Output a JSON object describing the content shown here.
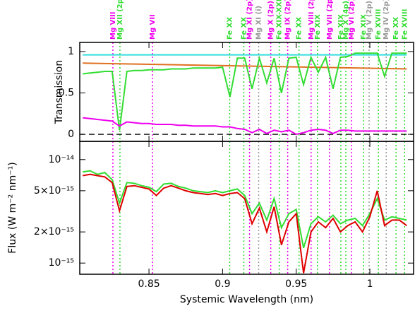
{
  "chart_data": [
    {
      "type": "line",
      "ylabel": "Transmission",
      "xlim": [
        0.803,
        1.0297
      ],
      "xticks": [
        0.85,
        0.9,
        0.95,
        1
      ],
      "ylim": [
        -0.085,
        1.11
      ],
      "yticks": [
        0,
        0.5,
        1
      ],
      "hline": 0,
      "x": [
        0.805,
        0.81,
        0.815,
        0.82,
        0.825,
        0.83,
        0.835,
        0.84,
        0.845,
        0.85,
        0.855,
        0.86,
        0.865,
        0.87,
        0.875,
        0.88,
        0.885,
        0.89,
        0.895,
        0.9,
        0.905,
        0.91,
        0.915,
        0.92,
        0.925,
        0.93,
        0.935,
        0.94,
        0.945,
        0.95,
        0.955,
        0.96,
        0.965,
        0.97,
        0.975,
        0.98,
        0.985,
        0.99,
        0.995,
        1,
        1.005,
        1.01,
        1.015,
        1.02,
        1.025
      ],
      "series": [
        {
          "color": "#33dddd",
          "x": [
            0.805,
            1.025
          ],
          "values": [
            0.96,
            0.96
          ]
        },
        {
          "color": "#e07020",
          "x": [
            0.805,
            1.025
          ],
          "values": [
            0.86,
            0.79
          ]
        },
        {
          "color": "#33dd33",
          "values": [
            0.73,
            0.74,
            0.75,
            0.76,
            0.76,
            0.05,
            0.76,
            0.77,
            0.77,
            0.78,
            0.78,
            0.78,
            0.79,
            0.79,
            0.79,
            0.8,
            0.8,
            0.8,
            0.8,
            0.81,
            0.45,
            0.92,
            0.92,
            0.55,
            0.92,
            0.62,
            0.92,
            0.5,
            0.92,
            0.93,
            0.6,
            0.93,
            0.75,
            0.93,
            0.55,
            0.93,
            0.94,
            0.98,
            0.98,
            0.98,
            0.98,
            0.7,
            0.98,
            0.98,
            0.98
          ]
        },
        {
          "color": "#ee00ee",
          "values": [
            0.2,
            0.19,
            0.18,
            0.17,
            0.16,
            0.1,
            0.15,
            0.14,
            0.13,
            0.13,
            0.12,
            0.12,
            0.12,
            0.11,
            0.11,
            0.1,
            0.1,
            0.1,
            0.1,
            0.09,
            0.09,
            0.07,
            0.06,
            0.02,
            0.06,
            0.01,
            0.05,
            0.03,
            0.05,
            0.0,
            0.02,
            0.05,
            0.06,
            0.05,
            0.01,
            0.05,
            0.05,
            0.04,
            0.04,
            0.04,
            0.04,
            0.04,
            0.04,
            0.04,
            0.04
          ]
        }
      ],
      "annotations": [
        {
          "text": "Mg VIII",
          "x": 0.8255,
          "color": "#ee00ee"
        },
        {
          "text": "Mg XII (2p)",
          "x": 0.8303,
          "color": "#33dd33"
        },
        {
          "text": "Mg VII",
          "x": 0.8524,
          "color": "#ee00ee"
        },
        {
          "text": "Fe XX",
          "x": 0.9048,
          "color": "#33dd33"
        },
        {
          "text": "Fe XX",
          "x": 0.9144,
          "color": "#33dd33"
        },
        {
          "text": "Mg XI (2p)",
          "x": 0.9183,
          "color": "#ee00ee"
        },
        {
          "text": "Mg XI (i)",
          "x": 0.9245,
          "color": "#999999"
        },
        {
          "text": "Mg X (2p)",
          "x": 0.9327,
          "color": "#ee00ee"
        },
        {
          "text": "Fe XIX-XXI",
          "x": 0.9385,
          "color": "#33dd33"
        },
        {
          "text": "Mg IX (2p)",
          "x": 0.9442,
          "color": "#ee00ee"
        },
        {
          "text": "Fe XX",
          "x": 0.9519,
          "color": "#33dd33"
        },
        {
          "text": "Mg VIII (2p)",
          "x": 0.9601,
          "color": "#ee00ee"
        },
        {
          "text": "Fe XIX",
          "x": 0.9644,
          "color": "#33dd33"
        },
        {
          "text": "Mg VII (2p)",
          "x": 0.9726,
          "color": "#ee00ee"
        },
        {
          "text": "Fe XIX",
          "x": 0.9803,
          "color": "#33dd33"
        },
        {
          "text": "Mg X (4p)",
          "x": 0.9837,
          "color": "#33dd33"
        },
        {
          "text": "Mg VI (2p)",
          "x": 0.9875,
          "color": "#ee00ee"
        },
        {
          "text": "Fe XIX",
          "x": 0.9957,
          "color": "#33dd33"
        },
        {
          "text": "Mg V (2p)",
          "x": 0.9995,
          "color": "#999999"
        },
        {
          "text": "Fe XVIII",
          "x": 1.0058,
          "color": "#33dd33"
        },
        {
          "text": "Mg IV (2p)",
          "x": 1.0111,
          "color": "#999999"
        },
        {
          "text": "Fe XX",
          "x": 1.0178,
          "color": "#33dd33"
        },
        {
          "text": "Fe XVIII",
          "x": 1.0236,
          "color": "#33dd33"
        }
      ]
    },
    {
      "type": "line",
      "ylabel": "Flux (W m⁻² nm⁻¹)",
      "xlabel": "Systemic Wavelength (nm)",
      "log_y": true,
      "xlim": [
        0.803,
        1.0297
      ],
      "xticks": [
        0.85,
        0.9,
        0.95,
        1
      ],
      "ylim": [
        7.8e-16,
        1.5e-14
      ],
      "yticks": [
        {
          "value": 1e-14,
          "label": "10⁻¹⁴"
        },
        {
          "value": 5e-15,
          "label": "5×10⁻¹⁵"
        },
        {
          "value": 2e-15,
          "label": "2×10⁻¹⁵"
        },
        {
          "value": 1e-15,
          "label": "10⁻¹⁵"
        }
      ],
      "x": [
        0.805,
        0.81,
        0.815,
        0.82,
        0.825,
        0.83,
        0.835,
        0.84,
        0.845,
        0.85,
        0.855,
        0.86,
        0.865,
        0.87,
        0.875,
        0.88,
        0.885,
        0.89,
        0.895,
        0.9,
        0.905,
        0.91,
        0.915,
        0.92,
        0.925,
        0.93,
        0.935,
        0.94,
        0.945,
        0.95,
        0.955,
        0.96,
        0.965,
        0.97,
        0.975,
        0.98,
        0.985,
        0.99,
        0.995,
        1,
        1.005,
        1.01,
        1.015,
        1.02,
        1.025
      ],
      "series": [
        {
          "color": "#33dd33",
          "values": [
            7.6e-15,
            7.8e-15,
            7.2e-15,
            7.5e-15,
            6.4e-15,
            3.8e-15,
            6e-15,
            5.9e-15,
            5.6e-15,
            5.4e-15,
            4.9e-15,
            5.8e-15,
            5.9e-15,
            5.5e-15,
            5.3e-15,
            5e-15,
            4.9e-15,
            4.8e-15,
            5e-15,
            4.8e-15,
            5e-15,
            5.2e-15,
            4.5e-15,
            3e-15,
            3.8e-15,
            2.6e-15,
            4.2e-15,
            2.2e-15,
            3e-15,
            3.3e-15,
            1.4e-15,
            2.4e-15,
            2.8e-15,
            2.5e-15,
            2.9e-15,
            2.4e-15,
            2.6e-15,
            2.7e-15,
            2.3e-15,
            3e-15,
            4.2e-15,
            2.6e-15,
            2.8e-15,
            2.7e-15,
            2.6e-15
          ]
        },
        {
          "color": "#e00000",
          "values": [
            7e-15,
            7.2e-15,
            7e-15,
            6.8e-15,
            6e-15,
            3.2e-15,
            5.5e-15,
            5.6e-15,
            5.4e-15,
            5.2e-15,
            4.5e-15,
            5.3e-15,
            5.6e-15,
            5.3e-15,
            5e-15,
            4.8e-15,
            4.7e-15,
            4.6e-15,
            4.7e-15,
            4.5e-15,
            4.7e-15,
            4.8e-15,
            4.2e-15,
            2.4e-15,
            3.4e-15,
            2e-15,
            3.5e-15,
            1.5e-15,
            2.5e-15,
            3e-15,
            8e-16,
            2e-15,
            2.5e-15,
            2.2e-15,
            2.7e-15,
            2e-15,
            2.3e-15,
            2.5e-15,
            2e-15,
            2.8e-15,
            5e-15,
            2.3e-15,
            2.6e-15,
            2.6e-15,
            2.3e-15
          ]
        }
      ]
    }
  ]
}
